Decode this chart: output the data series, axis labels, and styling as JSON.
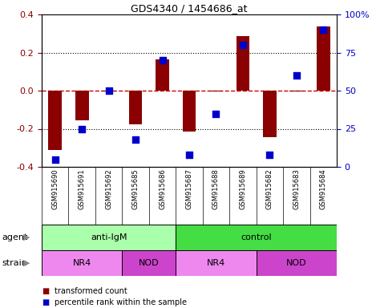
{
  "title": "GDS4340 / 1454686_at",
  "samples": [
    "GSM915690",
    "GSM915691",
    "GSM915692",
    "GSM915685",
    "GSM915686",
    "GSM915687",
    "GSM915688",
    "GSM915689",
    "GSM915682",
    "GSM915683",
    "GSM915684"
  ],
  "bar_values": [
    -0.31,
    -0.155,
    -0.005,
    -0.175,
    0.165,
    -0.215,
    -0.005,
    0.285,
    -0.245,
    -0.005,
    0.335
  ],
  "dot_values": [
    5,
    25,
    50,
    18,
    70,
    8,
    35,
    80,
    8,
    60,
    90
  ],
  "bar_color": "#8B0000",
  "dot_color": "#0000CC",
  "ylim": [
    -0.4,
    0.4
  ],
  "yticks_left": [
    -0.4,
    -0.2,
    0.0,
    0.2,
    0.4
  ],
  "yticks_right": [
    0,
    25,
    50,
    75,
    100
  ],
  "ytick_labels_right": [
    "0",
    "25",
    "50",
    "75",
    "100%"
  ],
  "hline_color": "#CC0000",
  "dotted_color": "black",
  "agent_groups": [
    {
      "label": "anti-IgM",
      "start": 0,
      "end": 5,
      "color": "#AAFFAA"
    },
    {
      "label": "control",
      "start": 5,
      "end": 11,
      "color": "#44DD44"
    }
  ],
  "strain_groups": [
    {
      "label": "NR4",
      "start": 0,
      "end": 3,
      "color": "#EE88EE"
    },
    {
      "label": "NOD",
      "start": 3,
      "end": 5,
      "color": "#CC44CC"
    },
    {
      "label": "NR4",
      "start": 5,
      "end": 8,
      "color": "#EE88EE"
    },
    {
      "label": "NOD",
      "start": 8,
      "end": 11,
      "color": "#CC44CC"
    }
  ],
  "legend_items": [
    {
      "label": "transformed count",
      "color": "#8B0000"
    },
    {
      "label": "percentile rank within the sample",
      "color": "#0000CC"
    }
  ],
  "agent_label": "agent",
  "strain_label": "strain",
  "bg_color": "#FFFFFF",
  "tick_area_bg": "#C8C8C8",
  "bar_width": 0.5,
  "dot_size": 30
}
